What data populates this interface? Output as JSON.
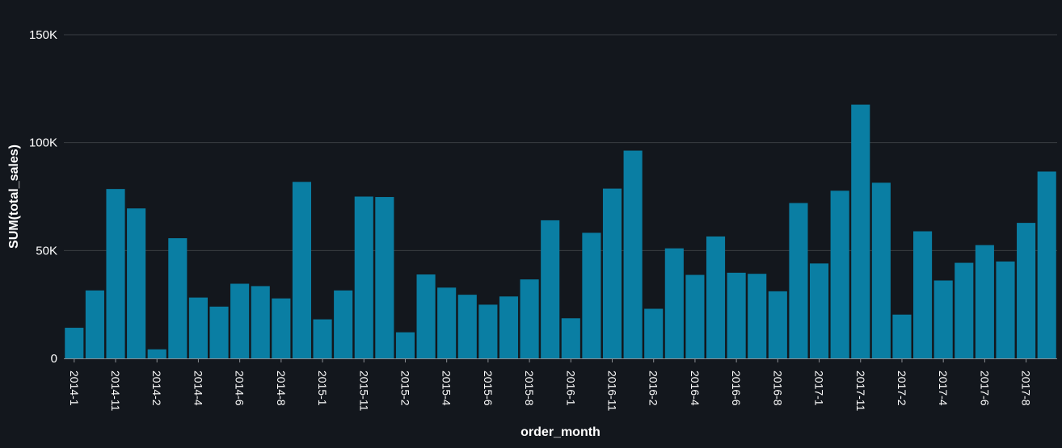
{
  "chart_data": {
    "type": "bar",
    "title": "",
    "xlabel": "order_month",
    "ylabel": "SUM(total_sales)",
    "ylim": [
      0,
      150000
    ],
    "yticks": [
      {
        "value": 0,
        "label": "0"
      },
      {
        "value": 50000,
        "label": "50K"
      },
      {
        "value": 100000,
        "label": "100K"
      },
      {
        "value": 150000,
        "label": "150K"
      }
    ],
    "grid": true,
    "bar_color": "#0a7ea3",
    "background": "#13171d",
    "grid_color": "#3a3d42",
    "text_color": "#ffffff",
    "categories": [
      "2014-1",
      "2014-10",
      "2014-11",
      "2014-12",
      "2014-2",
      "2014-3",
      "2014-4",
      "2014-5",
      "2014-6",
      "2014-7",
      "2014-8",
      "2014-9",
      "2015-1",
      "2015-10",
      "2015-11",
      "2015-12",
      "2015-2",
      "2015-3",
      "2015-4",
      "2015-5",
      "2015-6",
      "2015-7",
      "2015-8",
      "2015-9",
      "2016-1",
      "2016-10",
      "2016-11",
      "2016-12",
      "2016-2",
      "2016-3",
      "2016-4",
      "2016-5",
      "2016-6",
      "2016-7",
      "2016-8",
      "2016-9",
      "2017-1",
      "2017-10",
      "2017-11",
      "2017-12",
      "2017-2",
      "2017-3",
      "2017-4",
      "2017-5",
      "2017-6",
      "2017-7",
      "2017-8",
      "2017-9"
    ],
    "tick_labels_shown": [
      "2014-1",
      "2014-11",
      "2014-2",
      "2014-4",
      "2014-6",
      "2014-8",
      "2015-1",
      "2015-11",
      "2015-2",
      "2015-4",
      "2015-6",
      "2015-8",
      "2016-1",
      "2016-11",
      "2016-2",
      "2016-4",
      "2016-6",
      "2016-8",
      "2017-1",
      "2017-11",
      "2017-2",
      "2017-4",
      "2017-6",
      "2017-8"
    ],
    "values": [
      14200,
      31500,
      78500,
      69500,
      4200,
      55700,
      28200,
      24000,
      34600,
      33500,
      27800,
      81800,
      18100,
      31500,
      75000,
      74800,
      12100,
      38900,
      32800,
      29500,
      24900,
      28700,
      36600,
      64000,
      18600,
      58200,
      78700,
      96300,
      23000,
      51000,
      38700,
      56500,
      39700,
      39200,
      31100,
      72000,
      44000,
      77700,
      117600,
      81400,
      20300,
      58900,
      36100,
      44300,
      52500,
      44900,
      62800,
      86600
    ]
  }
}
